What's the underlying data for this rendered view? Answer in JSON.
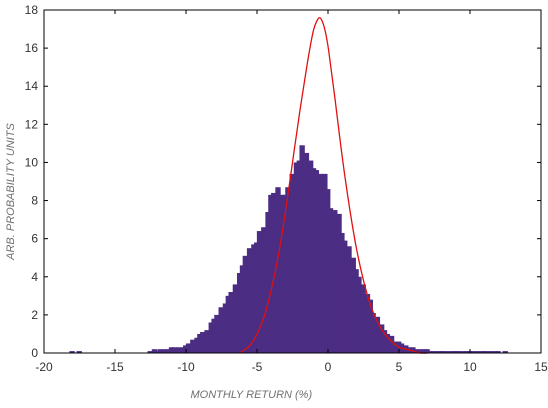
{
  "chart_data": {
    "type": "bar",
    "title": "",
    "xlabel": "MONTHLY RETURN (%)",
    "ylabel": "ARB. PROBABILITY UNITS",
    "xlim": [
      -20,
      15
    ],
    "ylim": [
      0,
      18
    ],
    "xticks": [
      -20,
      -15,
      -10,
      -5,
      0,
      5,
      10,
      15
    ],
    "yticks": [
      0,
      2,
      4,
      6,
      8,
      10,
      12,
      14,
      16,
      18
    ],
    "grid": false,
    "legend": "none",
    "bar_width": 0.42,
    "series": [
      {
        "type": "bar",
        "color": "#4b2d83",
        "x": [
          -18.0,
          -17.5,
          -12.5,
          -12.2,
          -12.0,
          -11.8,
          -11.5,
          -11.2,
          -11.0,
          -10.8,
          -10.5,
          -10.2,
          -10.0,
          -9.8,
          -9.5,
          -9.2,
          -9.0,
          -8.8,
          -8.5,
          -8.2,
          -8.0,
          -7.8,
          -7.5,
          -7.2,
          -7.0,
          -6.8,
          -6.5,
          -6.2,
          -6.0,
          -5.8,
          -5.5,
          -5.2,
          -5.0,
          -4.8,
          -4.5,
          -4.2,
          -4.0,
          -3.8,
          -3.5,
          -3.2,
          -3.0,
          -2.8,
          -2.5,
          -2.2,
          -2.0,
          -1.8,
          -1.5,
          -1.2,
          -1.0,
          -0.8,
          -0.5,
          -0.2,
          0.0,
          0.2,
          0.5,
          0.8,
          1.0,
          1.2,
          1.5,
          1.8,
          2.0,
          2.2,
          2.5,
          2.8,
          3.0,
          3.2,
          3.5,
          3.8,
          4.0,
          4.2,
          4.5,
          4.8,
          5.0,
          5.2,
          5.5,
          5.8,
          6.0,
          6.2,
          6.5,
          6.8,
          7.0,
          7.2,
          7.5,
          7.8,
          8.0,
          8.2,
          8.5,
          8.8,
          9.0,
          9.2,
          9.5,
          9.8,
          10.0,
          10.2,
          10.5,
          10.8,
          11.0,
          11.2,
          11.5,
          11.8,
          12.0,
          12.5
        ],
        "values": [
          0.1,
          0.1,
          0.1,
          0.2,
          0.1,
          0.2,
          0.2,
          0.2,
          0.3,
          0.3,
          0.3,
          0.3,
          0.4,
          0.5,
          0.7,
          0.8,
          1.0,
          1.1,
          1.2,
          1.6,
          1.8,
          2.0,
          2.4,
          2.6,
          3.0,
          3.2,
          3.6,
          4.2,
          4.6,
          5.1,
          5.5,
          5.7,
          5.8,
          6.4,
          6.6,
          7.4,
          8.3,
          8.4,
          8.7,
          8.3,
          8.3,
          8.7,
          9.4,
          10.0,
          10.1,
          10.9,
          10.5,
          10.1,
          9.7,
          9.6,
          9.4,
          9.4,
          8.6,
          7.6,
          7.5,
          7.3,
          6.3,
          5.9,
          5.6,
          5.0,
          4.4,
          4.0,
          3.6,
          3.1,
          2.8,
          2.1,
          1.9,
          1.5,
          1.2,
          1.0,
          0.9,
          0.6,
          0.6,
          0.5,
          0.4,
          0.3,
          0.3,
          0.2,
          0.2,
          0.2,
          0.2,
          0.1,
          0.1,
          0.1,
          0.1,
          0.1,
          0.1,
          0.1,
          0.1,
          0.1,
          0.1,
          0.1,
          0.1,
          0.1,
          0.1,
          0.1,
          0.1,
          0.1,
          0.1,
          0.1,
          0.1,
          0.1
        ]
      },
      {
        "type": "line",
        "color": "#e01010",
        "x": [
          -6.2,
          -5.5,
          -5.0,
          -4.5,
          -4.0,
          -3.5,
          -3.0,
          -2.5,
          -2.0,
          -1.5,
          -1.2,
          -1.0,
          -0.8,
          -0.6,
          -0.4,
          -0.2,
          0.0,
          0.2,
          0.5,
          1.0,
          1.5,
          2.0,
          2.5,
          3.0,
          3.5,
          4.0,
          4.5,
          5.0,
          5.5,
          6.0,
          6.5,
          7.0
        ],
        "values": [
          0.0,
          0.4,
          1.0,
          1.9,
          3.3,
          5.1,
          7.4,
          10.0,
          12.6,
          15.0,
          16.3,
          17.0,
          17.4,
          17.6,
          17.4,
          16.9,
          16.1,
          15.0,
          13.3,
          10.3,
          7.7,
          5.5,
          3.8,
          2.5,
          1.6,
          1.0,
          0.6,
          0.3,
          0.2,
          0.1,
          0.0,
          0.0
        ]
      }
    ]
  }
}
